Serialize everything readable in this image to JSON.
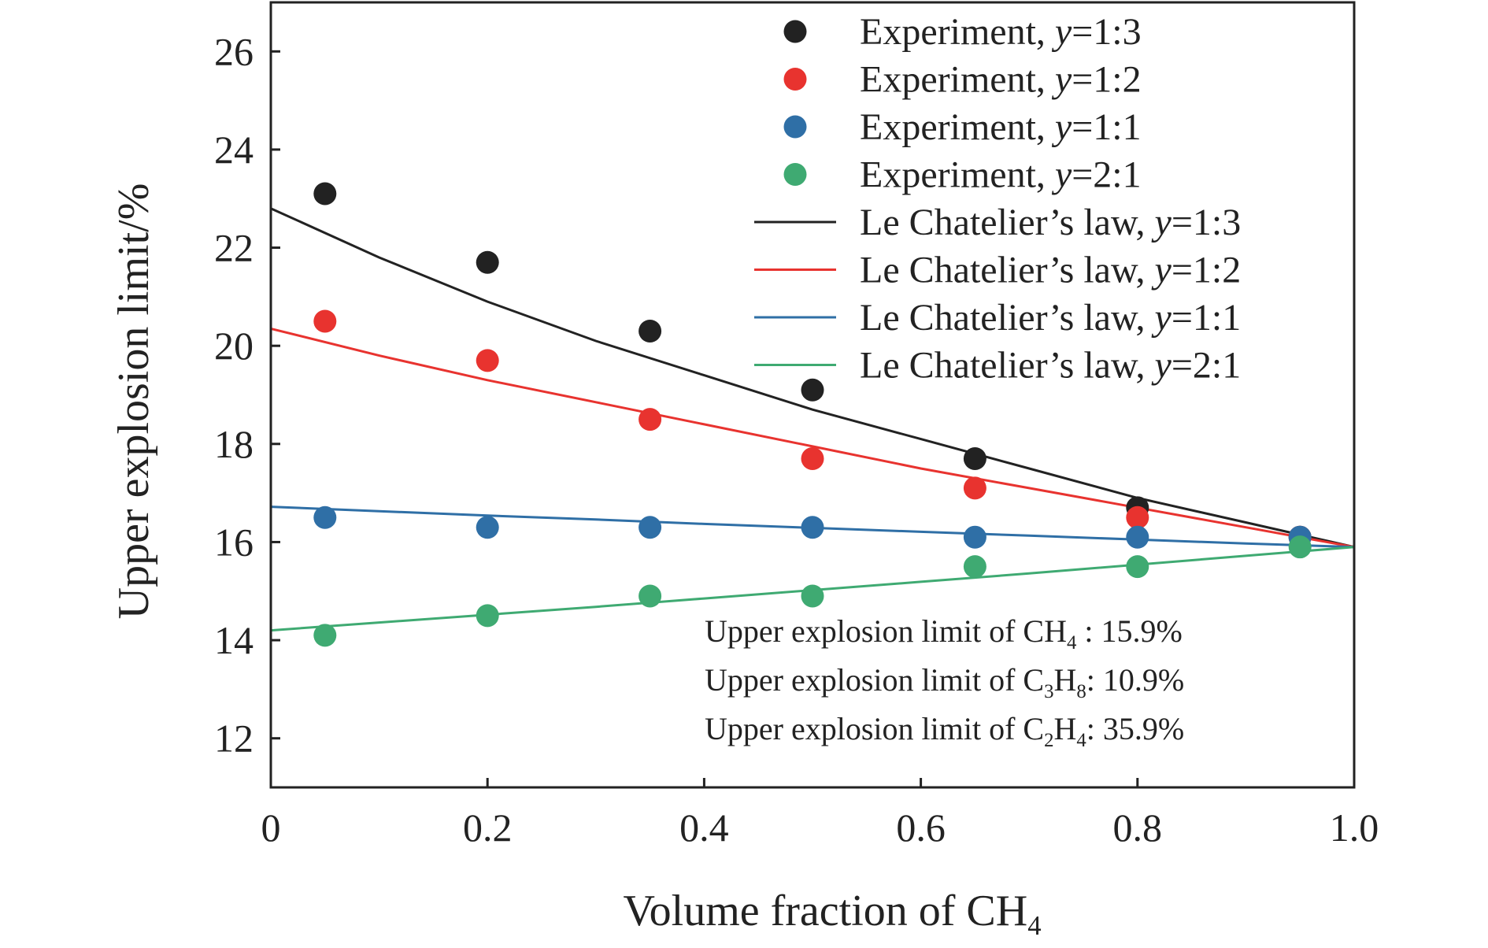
{
  "chart_data": {
    "type": "scatter",
    "xlabel": "Volume fraction of CH",
    "xlabel_sub": "4",
    "ylabel": "Upper explosion limit/%",
    "xlim": [
      0,
      1.0
    ],
    "ylim": [
      11,
      27
    ],
    "x_ticks": [
      0,
      0.2,
      0.4,
      0.6,
      0.8,
      1.0
    ],
    "x_tick_labels": [
      "0",
      "0.2",
      "0.4",
      "0.6",
      "0.8",
      "1.0"
    ],
    "y_ticks": [
      12,
      14,
      16,
      18,
      20,
      22,
      24,
      26
    ],
    "y_tick_labels": [
      "12",
      "14",
      "16",
      "18",
      "20",
      "22",
      "24",
      "26"
    ],
    "grid": false,
    "legend_position": "top-right",
    "series": [
      {
        "name": "Experiment, y=1:3",
        "name_prefix": "Experiment, ",
        "name_var": "y",
        "name_ratio": "=1:3",
        "kind": "scatter",
        "color": "#222222",
        "x": [
          0.05,
          0.2,
          0.35,
          0.5,
          0.65,
          0.8,
          0.95
        ],
        "y": [
          23.1,
          21.7,
          20.3,
          19.1,
          17.7,
          16.7,
          16.1
        ]
      },
      {
        "name": "Experiment, y=1:2",
        "name_prefix": "Experiment, ",
        "name_var": "y",
        "name_ratio": "=1:2",
        "kind": "scatter",
        "color": "#e8332f",
        "x": [
          0.05,
          0.2,
          0.35,
          0.5,
          0.65,
          0.8,
          0.95
        ],
        "y": [
          20.5,
          19.7,
          18.5,
          17.7,
          17.1,
          16.5,
          16.1
        ]
      },
      {
        "name": "Experiment, y=1:1",
        "name_prefix": "Experiment, ",
        "name_var": "y",
        "name_ratio": "=1:1",
        "kind": "scatter",
        "color": "#2f6fa6",
        "x": [
          0.05,
          0.2,
          0.35,
          0.5,
          0.65,
          0.8,
          0.95
        ],
        "y": [
          16.5,
          16.3,
          16.3,
          16.3,
          16.1,
          16.1,
          16.1
        ]
      },
      {
        "name": "Experiment, y=2:1",
        "name_prefix": "Experiment, ",
        "name_var": "y",
        "name_ratio": "=2:1",
        "kind": "scatter",
        "color": "#3faa72",
        "x": [
          0.05,
          0.2,
          0.35,
          0.5,
          0.65,
          0.8,
          0.95
        ],
        "y": [
          14.1,
          14.5,
          14.9,
          14.9,
          15.5,
          15.5,
          15.9
        ]
      },
      {
        "name": "Le Chatelier’s law, y=1:3",
        "name_prefix": "Le Chatelier’s law, ",
        "name_var": "y",
        "name_ratio": "=1:3",
        "kind": "line",
        "color": "#222222",
        "x": [
          0,
          0.1,
          0.2,
          0.3,
          0.4,
          0.5,
          0.6,
          0.7,
          0.8,
          0.9,
          1.0
        ],
        "y": [
          22.8,
          21.8,
          20.9,
          20.1,
          19.4,
          18.7,
          18.1,
          17.5,
          16.9,
          16.4,
          15.9
        ]
      },
      {
        "name": "Le Chatelier’s law, y=1:2",
        "name_prefix": "Le Chatelier’s law, ",
        "name_var": "y",
        "name_ratio": "=1:2",
        "kind": "line",
        "color": "#e8332f",
        "x": [
          0,
          0.1,
          0.2,
          0.3,
          0.4,
          0.5,
          0.6,
          0.7,
          0.8,
          0.9,
          1.0
        ],
        "y": [
          20.35,
          19.8,
          19.3,
          18.85,
          18.4,
          17.95,
          17.5,
          17.1,
          16.7,
          16.3,
          15.9
        ]
      },
      {
        "name": "Le Chatelier’s law, y=1:1",
        "name_prefix": "Le Chatelier’s law, ",
        "name_var": "y",
        "name_ratio": "=1:1",
        "kind": "line",
        "color": "#2f6fa6",
        "x": [
          0,
          0.1,
          0.2,
          0.3,
          0.4,
          0.5,
          0.6,
          0.7,
          0.8,
          0.9,
          1.0
        ],
        "y": [
          16.72,
          16.63,
          16.54,
          16.46,
          16.37,
          16.29,
          16.21,
          16.13,
          16.05,
          15.97,
          15.9
        ]
      },
      {
        "name": "Le Chatelier’s law, y=2:1",
        "name_prefix": "Le Chatelier’s law, ",
        "name_var": "y",
        "name_ratio": "=2:1",
        "kind": "line",
        "color": "#3faa72",
        "x": [
          0,
          0.1,
          0.2,
          0.3,
          0.4,
          0.5,
          0.6,
          0.7,
          0.8,
          0.9,
          1.0
        ],
        "y": [
          14.2,
          14.36,
          14.52,
          14.68,
          14.85,
          15.02,
          15.19,
          15.36,
          15.54,
          15.72,
          15.9
        ]
      }
    ],
    "annotations": [
      {
        "text": "Upper explosion limit of CH₄ : 15.9%",
        "parts": [
          [
            "Upper explosion limit of CH",
            ""
          ],
          [
            "4",
            "sub"
          ],
          [
            " : 15.9%",
            ""
          ]
        ]
      },
      {
        "text": "Upper explosion limit of C₃H₈: 10.9%",
        "parts": [
          [
            "Upper explosion limit of C",
            ""
          ],
          [
            "3",
            "sub"
          ],
          [
            "H",
            ""
          ],
          [
            "8",
            "sub"
          ],
          [
            ": 10.9%",
            ""
          ]
        ]
      },
      {
        "text": "Upper explosion limit of C₂H₄: 35.9%",
        "parts": [
          [
            "Upper explosion limit of C",
            ""
          ],
          [
            "2",
            "sub"
          ],
          [
            "H",
            ""
          ],
          [
            "4",
            "sub"
          ],
          [
            ": 35.9%",
            ""
          ]
        ]
      }
    ]
  }
}
